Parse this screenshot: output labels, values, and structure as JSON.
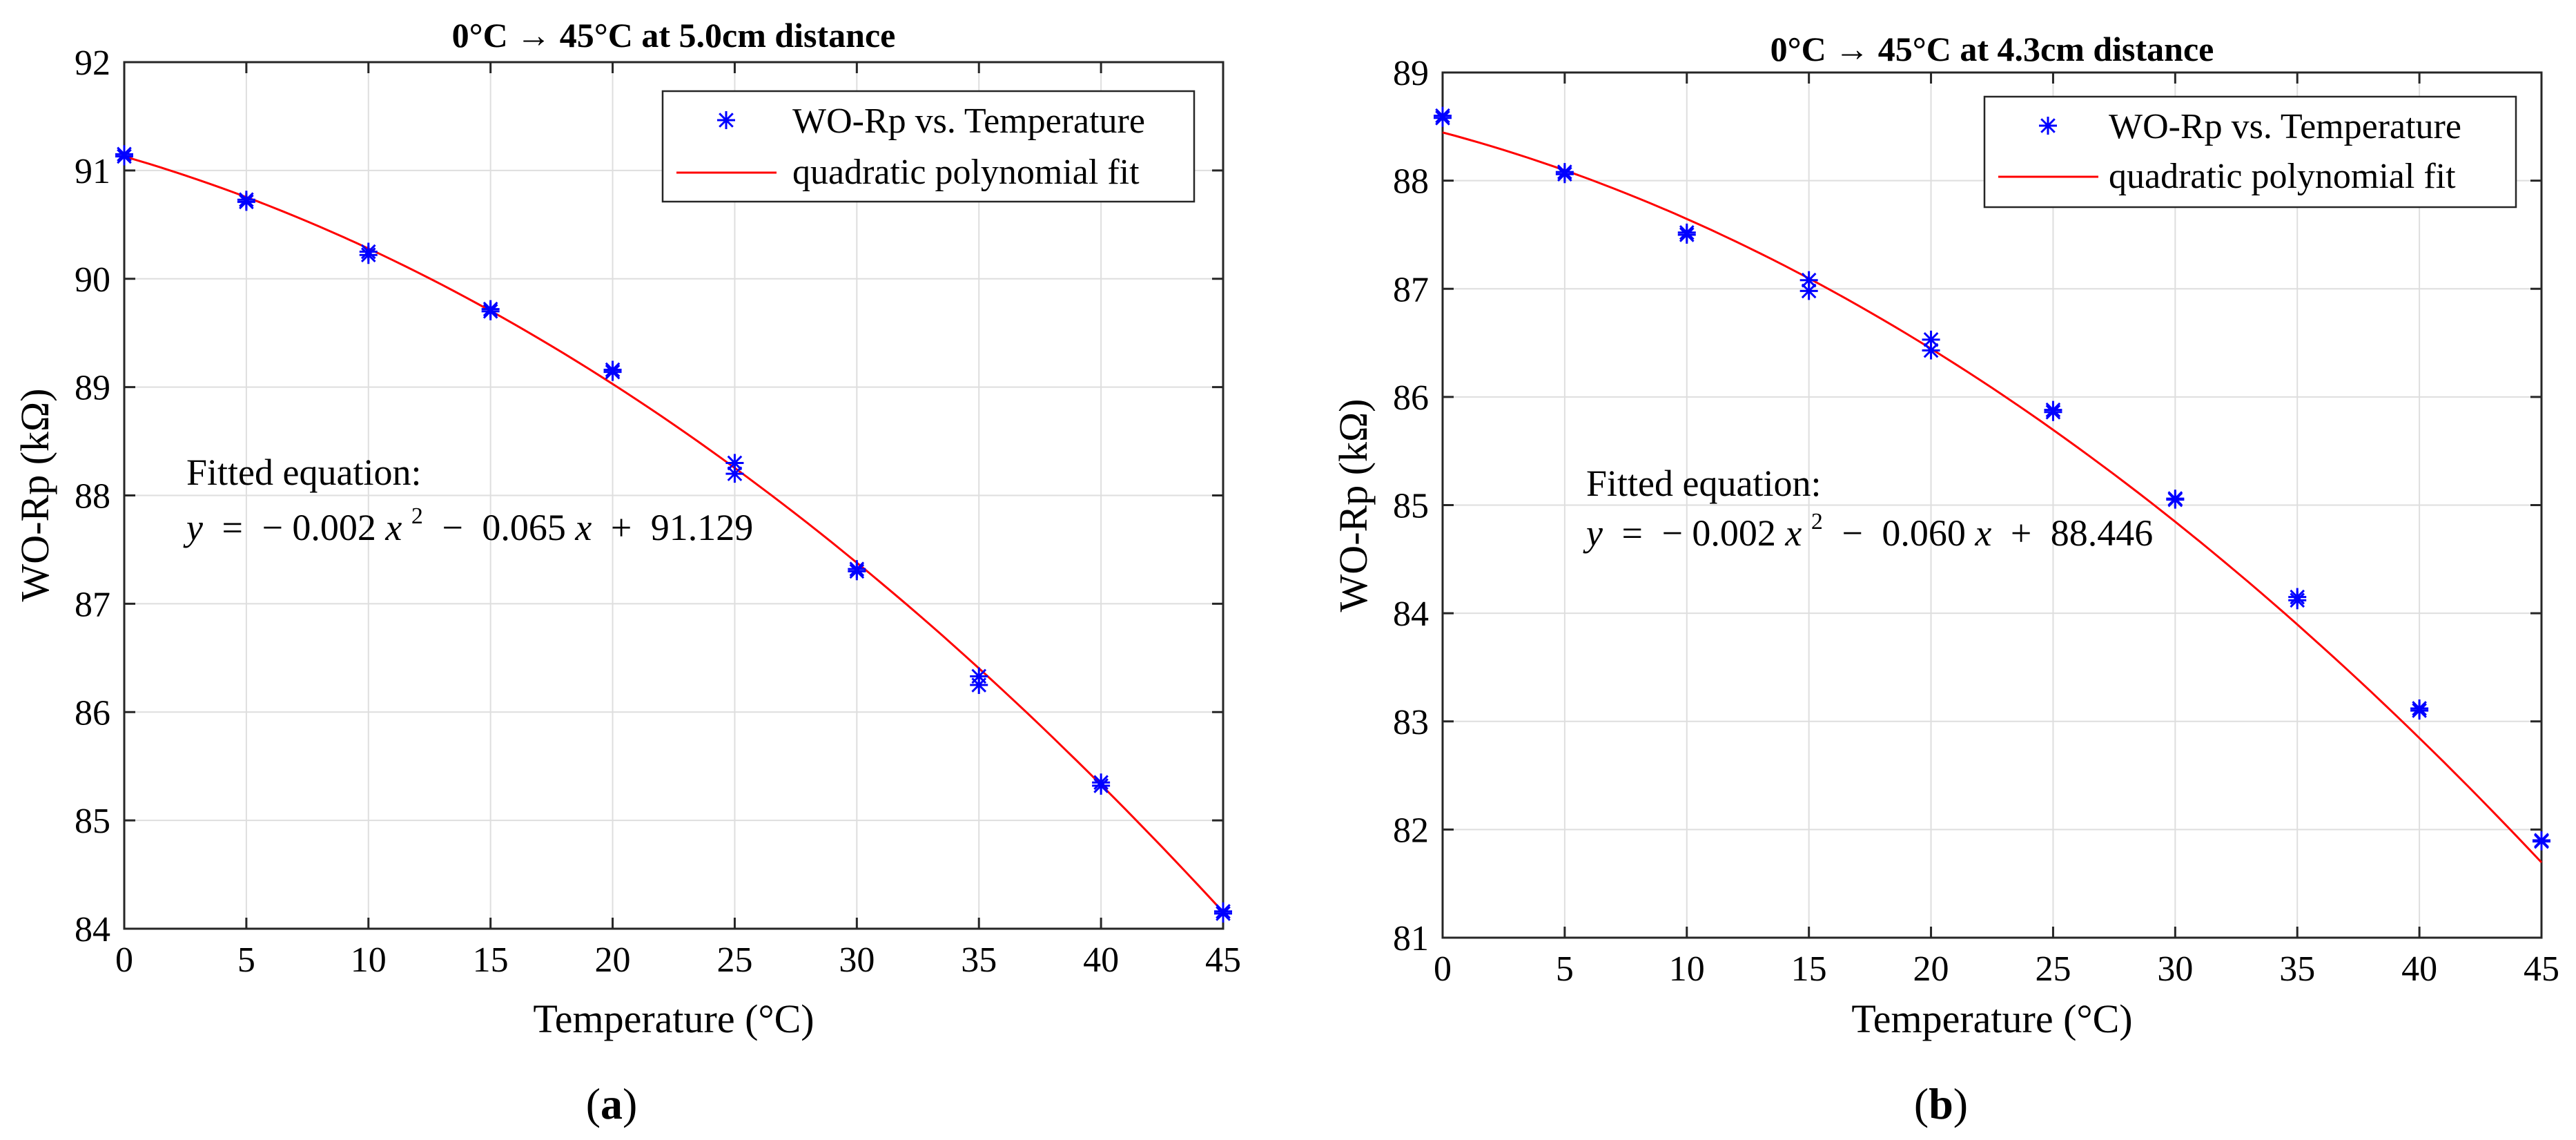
{
  "chart_data": [
    {
      "type": "scatter",
      "title": "0°C → 45°C at 5.0cm distance",
      "xlabel": "Temperature (°C)",
      "ylabel": "WO-Rp (kΩ)",
      "xlim": [
        0,
        45
      ],
      "ylim": [
        84,
        92
      ],
      "xticks": [
        0,
        5,
        10,
        15,
        20,
        25,
        30,
        35,
        40,
        45
      ],
      "yticks": [
        84,
        85,
        86,
        87,
        88,
        89,
        90,
        91,
        92
      ],
      "grid": true,
      "legend_position": "top-right",
      "series": [
        {
          "name": "WO-Rp vs. Temperature",
          "kind": "scatter",
          "marker": "asterisk",
          "color": "#0000ff",
          "points": [
            [
              0,
              91.15
            ],
            [
              0,
              91.13
            ],
            [
              5,
              90.73
            ],
            [
              5,
              90.71
            ],
            [
              10,
              90.25
            ],
            [
              10,
              90.22
            ],
            [
              15,
              89.72
            ],
            [
              15,
              89.7
            ],
            [
              20,
              89.16
            ],
            [
              20,
              89.14
            ],
            [
              25,
              88.3
            ],
            [
              25,
              88.2
            ],
            [
              30,
              87.32
            ],
            [
              30,
              87.3
            ],
            [
              35,
              86.33
            ],
            [
              35,
              86.25
            ],
            [
              40,
              85.35
            ],
            [
              40,
              85.32
            ],
            [
              45,
              84.16
            ],
            [
              45,
              84.14
            ]
          ]
        },
        {
          "name": "quadratic polynomial fit",
          "kind": "line",
          "color": "#ff0000",
          "coefficients": [
            -0.002,
            -0.065,
            91.129
          ],
          "x_range": [
            0,
            45
          ]
        }
      ],
      "annotation": {
        "line1": "Fitted equation:",
        "y": "y",
        "eq": "=",
        "minus": "−",
        "c1": "0.002",
        "x": "x",
        "pow": "2",
        "c2": "0.065",
        "plus": "+",
        "c3": "91.129"
      }
    },
    {
      "type": "scatter",
      "title": "0°C → 45°C at 4.3cm distance",
      "xlabel": "Temperature (°C)",
      "ylabel": "WO-Rp (kΩ)",
      "xlim": [
        0,
        45
      ],
      "ylim": [
        81,
        89
      ],
      "xticks": [
        0,
        5,
        10,
        15,
        20,
        25,
        30,
        35,
        40,
        45
      ],
      "yticks": [
        81,
        82,
        83,
        84,
        85,
        86,
        87,
        88,
        89
      ],
      "grid": true,
      "legend_position": "top-right",
      "series": [
        {
          "name": "WO-Rp vs. Temperature",
          "kind": "scatter",
          "marker": "asterisk",
          "color": "#0000ff",
          "points": [
            [
              0,
              88.6
            ],
            [
              0,
              88.58
            ],
            [
              5,
              88.08
            ],
            [
              5,
              88.06
            ],
            [
              10,
              87.52
            ],
            [
              10,
              87.5
            ],
            [
              15,
              87.08
            ],
            [
              15,
              86.98
            ],
            [
              20,
              86.53
            ],
            [
              20,
              86.43
            ],
            [
              25,
              85.88
            ],
            [
              25,
              85.86
            ],
            [
              30,
              85.06
            ],
            [
              30,
              85.05
            ],
            [
              35,
              84.15
            ],
            [
              35,
              84.12
            ],
            [
              40,
              83.12
            ],
            [
              40,
              83.1
            ],
            [
              45,
              81.9
            ],
            [
              45,
              81.89
            ]
          ]
        },
        {
          "name": "quadratic polynomial fit",
          "kind": "line",
          "color": "#ff0000",
          "coefficients": [
            -0.002,
            -0.06,
            88.446
          ],
          "x_range": [
            0,
            45
          ]
        }
      ],
      "annotation": {
        "line1": "Fitted equation:",
        "y": "y",
        "eq": "=",
        "minus": "−",
        "c1": "0.002",
        "x": "x",
        "pow": "2",
        "c2": "0.060",
        "plus": "+",
        "c3": "88.446"
      }
    }
  ],
  "captions": [
    {
      "open": "(",
      "letter": "a",
      "close": ")"
    },
    {
      "open": "(",
      "letter": "b",
      "close": ")"
    }
  ]
}
